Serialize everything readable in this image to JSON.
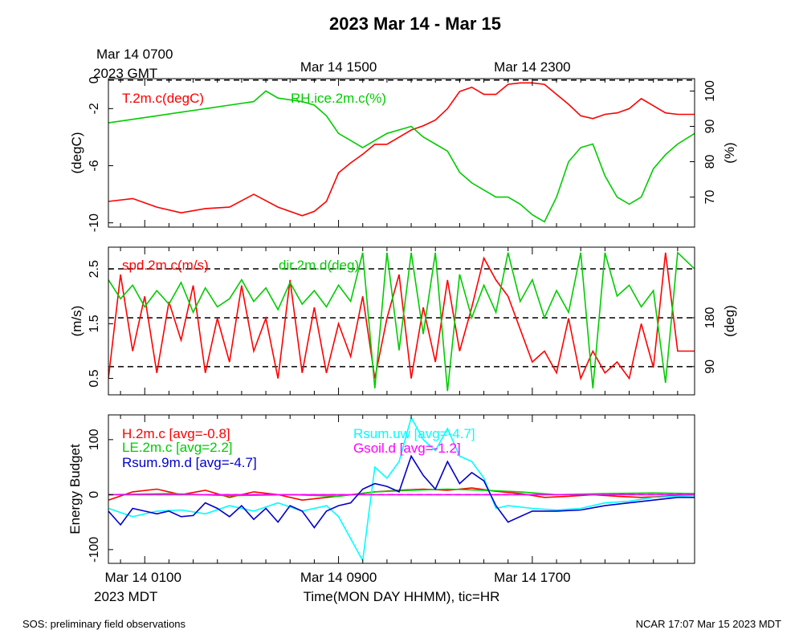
{
  "title": "2023 Mar 14 - Mar 15",
  "top_axis": {
    "first_label": [
      "Mar 14 0700",
      "2023 GMT"
    ],
    "labels": [
      "Mar 14 1500",
      "Mar 14 2300"
    ]
  },
  "bottom_axis": {
    "first_label": [
      "Mar 14 0100",
      "2023 MDT"
    ],
    "labels": [
      "Mar 14 0900",
      "Mar 14 1700"
    ],
    "title": "Time(MON DAY HHMM), tic=HR"
  },
  "footer": {
    "left": "SOS: preliminary field observations",
    "right": "NCAR 17:07 Mar 15 2023 MDT"
  },
  "colors": {
    "red": "#ff0000",
    "green": "#00cc00",
    "blue": "#0000cc",
    "cyan": "#00ffff",
    "magenta": "#ff00ff"
  },
  "chart_data": [
    {
      "type": "line",
      "panel": "temperature-humidity",
      "x_unit": "hours since Mar 14 0000 MDT",
      "xlim": [
        -0.5,
        23.7
      ],
      "ylabel_left": "(degC)",
      "ylabel_right": "(%)",
      "ylim_left": [
        -10.3,
        0.1
      ],
      "ylim_right": [
        61.5,
        103.5
      ],
      "yticks_left": [
        0,
        -2,
        -6,
        -10
      ],
      "yticks_right": [
        100,
        90,
        80,
        70
      ],
      "reference_lines": [
        {
          "axis": "left",
          "value": 0
        }
      ],
      "series": [
        {
          "name": "T.2m.c(degC)",
          "color": "#ff0000",
          "axis": "left",
          "x": [
            -0.5,
            0.5,
            1.5,
            2.5,
            3.5,
            4.5,
            5.5,
            6.5,
            7.5,
            8.0,
            8.5,
            9.0,
            9.5,
            10.0,
            10.5,
            11.0,
            11.5,
            12.0,
            12.5,
            13.0,
            13.5,
            14.0,
            14.5,
            15.0,
            15.5,
            16.0,
            16.5,
            17.0,
            17.5,
            18.0,
            18.5,
            19.0,
            19.5,
            20.0,
            20.5,
            21.0,
            21.5,
            22.0,
            22.5,
            23.0,
            23.7
          ],
          "values": [
            -8.5,
            -8.3,
            -8.9,
            -9.3,
            -9.0,
            -8.9,
            -8.0,
            -8.9,
            -9.5,
            -9.2,
            -8.5,
            -6.5,
            -5.8,
            -5.2,
            -4.5,
            -4.5,
            -4.0,
            -3.5,
            -3.2,
            -2.8,
            -2.0,
            -0.8,
            -0.5,
            -1.0,
            -1.0,
            -0.3,
            -0.2,
            -0.2,
            -0.3,
            -1.0,
            -1.7,
            -2.5,
            -2.7,
            -2.4,
            -2.3,
            -2.0,
            -1.3,
            -1.8,
            -2.3,
            -2.4,
            -2.4
          ]
        },
        {
          "name": "RH.ice.2m.c(%)",
          "color": "#00cc00",
          "axis": "right",
          "x": [
            -0.5,
            0.5,
            1.5,
            2.5,
            3.5,
            4.5,
            5.5,
            6.0,
            6.5,
            7.5,
            8.0,
            8.5,
            9.0,
            9.5,
            10.0,
            10.5,
            11.0,
            11.5,
            12.0,
            12.5,
            13.0,
            13.5,
            14.0,
            14.5,
            15.0,
            15.5,
            16.0,
            16.5,
            17.0,
            17.5,
            18.0,
            18.5,
            19.0,
            19.5,
            20.0,
            20.5,
            21.0,
            21.5,
            22.0,
            22.5,
            23.0,
            23.7
          ],
          "values": [
            91,
            92,
            93,
            94,
            95,
            96,
            97,
            100,
            98,
            97,
            96,
            93,
            88,
            86,
            84,
            86,
            88,
            89,
            90,
            87,
            85,
            83,
            77,
            74,
            72,
            70,
            70,
            68,
            65,
            63,
            70,
            80,
            84,
            85,
            76,
            70,
            68,
            70,
            78,
            82,
            85,
            88
          ]
        }
      ],
      "annotations": [
        "T.2m.c(degC)",
        "RH.ice.2m.c(%)"
      ]
    },
    {
      "type": "line",
      "panel": "wind",
      "x_unit": "hours since Mar 14 0000 MDT",
      "xlim": [
        -0.5,
        23.7
      ],
      "ylabel_left": "(m/s)",
      "ylabel_right": "(deg)",
      "ylim_left": [
        0.2,
        2.9
      ],
      "ylim_right": [
        38,
        310
      ],
      "yticks_left": [
        2.5,
        1.5,
        0.5
      ],
      "yticks_right": [
        180,
        90
      ],
      "reference_lines": [
        {
          "axis": "right",
          "value": 90
        },
        {
          "axis": "right",
          "value": 180
        },
        {
          "axis": "right",
          "value": 270
        }
      ],
      "series": [
        {
          "name": "spd.2m.c(m/s)",
          "color": "#ff0000",
          "axis": "left",
          "x": [
            -0.5,
            0.0,
            0.5,
            1.0,
            1.5,
            2.0,
            2.5,
            3.0,
            3.5,
            4.0,
            4.5,
            5.0,
            5.5,
            6.0,
            6.5,
            7.0,
            7.5,
            8.0,
            8.5,
            9.0,
            9.5,
            10.0,
            10.5,
            11.0,
            11.5,
            12.0,
            12.5,
            13.0,
            13.5,
            14.0,
            14.5,
            15.0,
            15.5,
            16.0,
            16.5,
            17.0,
            17.5,
            18.0,
            18.5,
            19.0,
            19.5,
            20.0,
            20.5,
            21.0,
            21.5,
            22.0,
            22.5,
            23.0,
            23.7
          ],
          "values": [
            0.5,
            2.4,
            1.0,
            2.0,
            0.6,
            1.9,
            1.2,
            2.2,
            0.6,
            1.6,
            0.8,
            2.2,
            1.0,
            1.6,
            0.5,
            2.3,
            0.6,
            1.8,
            0.6,
            1.5,
            0.9,
            2.0,
            0.5,
            1.6,
            2.4,
            0.5,
            1.8,
            0.8,
            2.3,
            1.0,
            1.8,
            2.7,
            2.3,
            2.0,
            1.4,
            0.8,
            1.0,
            0.6,
            1.6,
            0.5,
            1.0,
            0.6,
            0.8,
            0.5,
            1.5,
            0.7,
            2.8,
            1.0,
            1.0
          ]
        },
        {
          "name": "dir.2m.d(deg)",
          "color": "#00cc00",
          "axis": "right",
          "x": [
            -0.5,
            0.0,
            0.5,
            1.0,
            1.5,
            2.0,
            2.5,
            3.0,
            3.5,
            4.0,
            4.5,
            5.0,
            5.5,
            6.0,
            6.5,
            7.0,
            7.5,
            8.0,
            8.5,
            9.0,
            9.5,
            10.0,
            10.5,
            11.0,
            11.5,
            12.0,
            12.5,
            13.0,
            13.5,
            14.0,
            14.5,
            15.0,
            15.5,
            16.0,
            16.5,
            17.0,
            17.5,
            18.0,
            18.5,
            19.0,
            19.5,
            20.0,
            20.5,
            21.0,
            21.5,
            22.0,
            22.5,
            23.0,
            23.7
          ],
          "values": [
            250,
            215,
            240,
            200,
            230,
            205,
            245,
            190,
            235,
            200,
            215,
            250,
            210,
            235,
            195,
            245,
            205,
            230,
            200,
            240,
            210,
            300,
            50,
            300,
            120,
            300,
            150,
            300,
            45,
            260,
            180,
            240,
            190,
            300,
            210,
            250,
            180,
            230,
            190,
            300,
            50,
            300,
            220,
            240,
            200,
            230,
            60,
            300,
            270
          ]
        }
      ],
      "annotations": [
        "spd.2m.c(m/s)",
        "dir.2m.d(deg)"
      ]
    },
    {
      "type": "line",
      "panel": "energy-budget",
      "x_unit": "hours since Mar 14 0000 MDT",
      "xlim": [
        -0.5,
        23.7
      ],
      "ylabel_left": "Energy Budget",
      "ylim": [
        -125,
        145
      ],
      "yticks": [
        100,
        0,
        -100
      ],
      "reference_lines": [
        {
          "axis": "left",
          "value": 0
        }
      ],
      "series": [
        {
          "name": "H.2m.c",
          "color": "#ff0000",
          "avg_label": "H.2m.c [avg=-0.8]",
          "x": [
            -0.5,
            0.5,
            1.5,
            2.5,
            3.5,
            4.5,
            5.5,
            6.5,
            7.5,
            8.5,
            9.5,
            10.5,
            11.5,
            12.5,
            13.5,
            14.5,
            15.5,
            16.5,
            17.5,
            18.5,
            19.5,
            20.5,
            21.5,
            22.5,
            23.7
          ],
          "values": [
            -10,
            5,
            10,
            0,
            8,
            -5,
            5,
            0,
            -10,
            -5,
            0,
            5,
            8,
            10,
            8,
            12,
            6,
            2,
            -5,
            -3,
            0,
            -3,
            -5,
            -3,
            0
          ]
        },
        {
          "name": "LE.2m.c",
          "color": "#00cc00",
          "avg_label": "LE.2m.c [avg=2.2]",
          "x": [
            -0.5,
            2.0,
            4.5,
            7.0,
            9.0,
            10.5,
            12.0,
            13.5,
            15.0,
            16.5,
            18.0,
            20.0,
            22.0,
            23.7
          ],
          "values": [
            0,
            2,
            -2,
            0,
            -3,
            5,
            8,
            10,
            8,
            5,
            0,
            2,
            3,
            2
          ]
        },
        {
          "name": "Rsum.uw",
          "color": "#00ffff",
          "avg_label": "Rsum.uw [avg=-4.7]",
          "x": [
            -0.5,
            0.5,
            1.5,
            2.5,
            3.5,
            4.5,
            5.5,
            6.5,
            7.5,
            8.5,
            9.0,
            9.5,
            10.0,
            10.5,
            11.0,
            11.5,
            12.0,
            12.5,
            13.0,
            13.5,
            14.0,
            14.5,
            15.0,
            15.5,
            16.0,
            17.0,
            18.0,
            19.0,
            20.0,
            21.0,
            22.0,
            23.0,
            23.7
          ],
          "values": [
            -25,
            -40,
            -30,
            -28,
            -35,
            -20,
            -30,
            -15,
            -30,
            -20,
            -40,
            -80,
            -120,
            50,
            30,
            60,
            140,
            100,
            80,
            120,
            70,
            60,
            30,
            -25,
            -20,
            -25,
            -28,
            -25,
            -15,
            -12,
            -5,
            -3,
            -2
          ]
        },
        {
          "name": "Gsoil.d",
          "color": "#ff00ff",
          "avg_label": "Gsoil.d [avg=-1.2]",
          "x": [
            -0.5,
            23.7
          ],
          "values": [
            0,
            0
          ]
        },
        {
          "name": "Rsum.9m.d",
          "color": "#0000cc",
          "avg_label": "Rsum.9m.d [avg=-4.7]",
          "x": [
            -0.5,
            0.0,
            0.5,
            1.0,
            1.5,
            2.0,
            2.5,
            3.0,
            3.5,
            4.0,
            4.5,
            5.0,
            5.5,
            6.0,
            6.5,
            7.0,
            7.5,
            8.0,
            8.5,
            9.0,
            9.5,
            10.0,
            10.5,
            11.0,
            11.5,
            12.0,
            12.5,
            13.0,
            13.5,
            14.0,
            14.5,
            15.0,
            15.5,
            16.0,
            17.0,
            18.0,
            19.0,
            20.0,
            21.0,
            22.0,
            23.0,
            23.7
          ],
          "values": [
            -30,
            -55,
            -25,
            -30,
            -35,
            -30,
            -40,
            -38,
            -15,
            -25,
            -40,
            -20,
            -45,
            -25,
            -50,
            -20,
            -30,
            -60,
            -30,
            -20,
            -15,
            10,
            20,
            15,
            5,
            70,
            35,
            10,
            60,
            20,
            40,
            25,
            -20,
            -50,
            -30,
            -30,
            -28,
            -20,
            -15,
            -10,
            -5,
            -5
          ]
        }
      ],
      "annotations": [
        "H.2m.c [avg=-0.8]",
        "LE.2m.c [avg=2.2]",
        "Rsum.9m.d [avg=-4.7]",
        "Rsum.uw [avg=-4.7]",
        "Gsoil.d [avg=-1.2]"
      ]
    }
  ]
}
